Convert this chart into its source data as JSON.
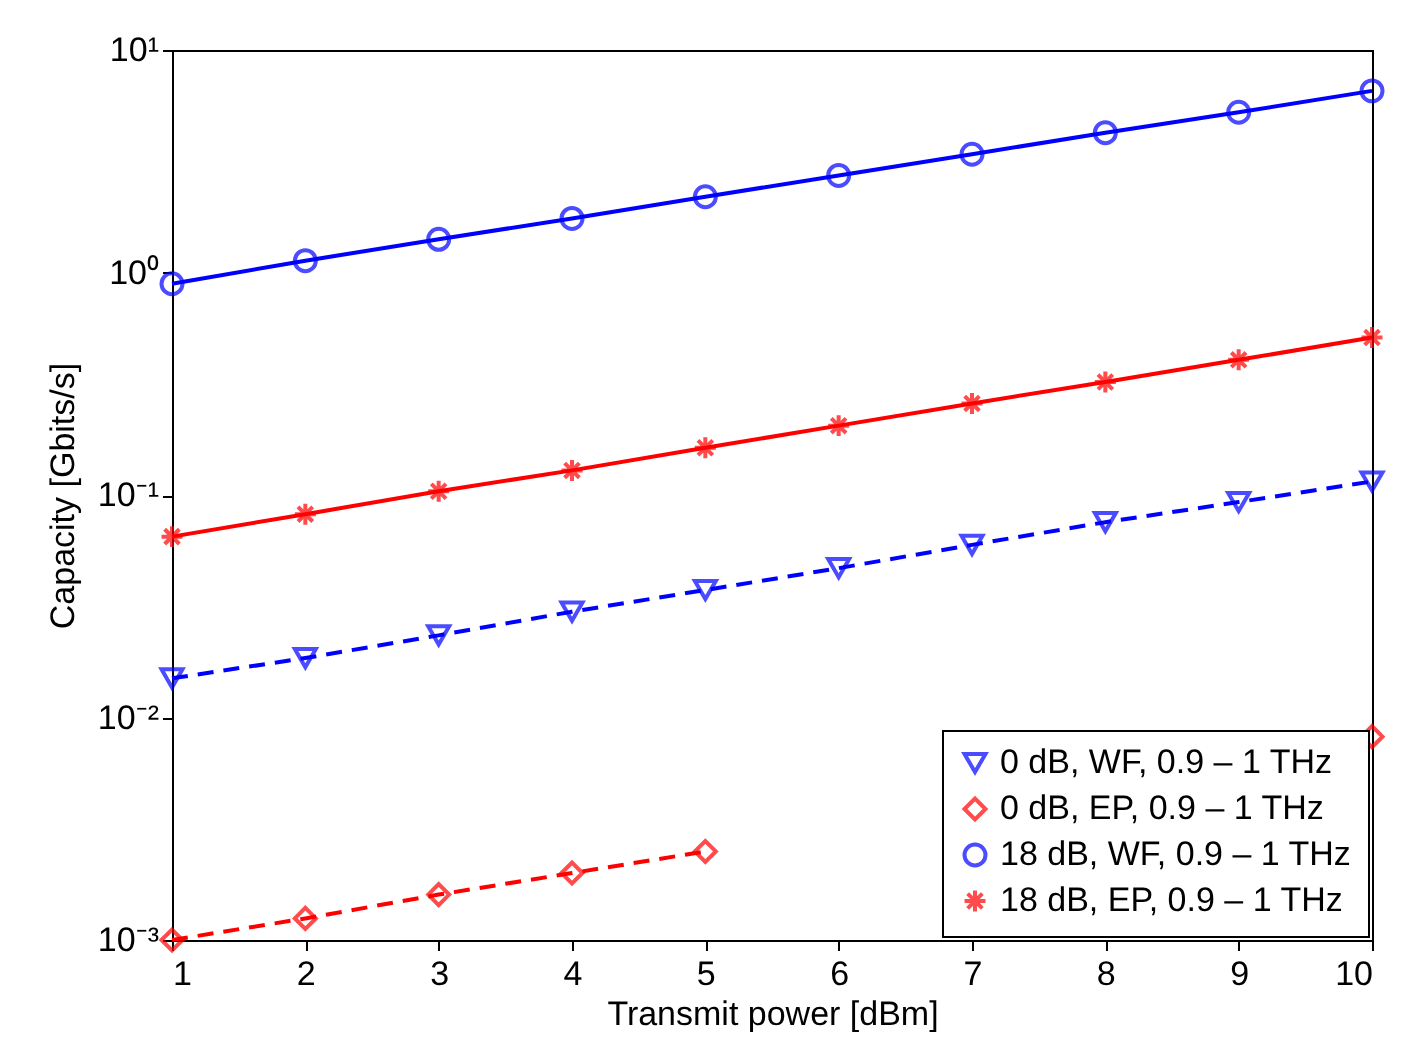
{
  "chart_data": {
    "type": "line",
    "xlabel": "Transmit power [dBm]",
    "ylabel": "Capacity [Gbits/s]",
    "x": [
      1,
      2,
      3,
      4,
      5,
      6,
      7,
      8,
      9,
      10
    ],
    "xlim": [
      1,
      10
    ],
    "xticks": [
      1,
      2,
      3,
      4,
      5,
      6,
      7,
      8,
      9,
      10
    ],
    "log": "y",
    "ylim": [
      0.001,
      10
    ],
    "yticks": [
      {
        "value": 0.001,
        "label": "10⁻³"
      },
      {
        "value": 0.01,
        "label": "10⁻²"
      },
      {
        "value": 0.1,
        "label": "10⁻¹"
      },
      {
        "value": 1,
        "label": "10⁰"
      },
      {
        "value": 10,
        "label": "10¹"
      }
    ],
    "legend": "bottom right",
    "series": [
      {
        "name": "0 dB, WF, 0.9 – 1 THz",
        "color": "#0000ff",
        "marker": "triangle",
        "line_style": "dashed",
        "values": [
          0.015,
          0.0185,
          0.0234,
          0.0299,
          0.0374,
          0.0469,
          0.0597,
          0.0755,
          0.093,
          0.115
        ]
      },
      {
        "name": "0 dB, EP, 0.9 – 1 THz",
        "color": "#ff0000",
        "marker": "diamond",
        "line_style": "dashed",
        "values": [
          0.001,
          0.00125,
          0.0016,
          0.002,
          0.0025,
          null,
          null,
          null,
          null,
          0.0082
        ]
      },
      {
        "name": "18 dB, WF, 0.9 – 1 THz",
        "color": "#0000ff",
        "marker": "circle",
        "line_style": "solid",
        "values": [
          0.89,
          1.13,
          1.41,
          1.75,
          2.19,
          2.73,
          3.4,
          4.25,
          5.25,
          6.55
        ]
      },
      {
        "name": "18 dB, EP, 0.9 – 1 THz",
        "color": "#ff0000",
        "marker": "cross",
        "line_style": "solid",
        "values": [
          0.065,
          0.082,
          0.104,
          0.129,
          0.163,
          0.205,
          0.258,
          0.322,
          0.405,
          0.51
        ]
      }
    ]
  }
}
